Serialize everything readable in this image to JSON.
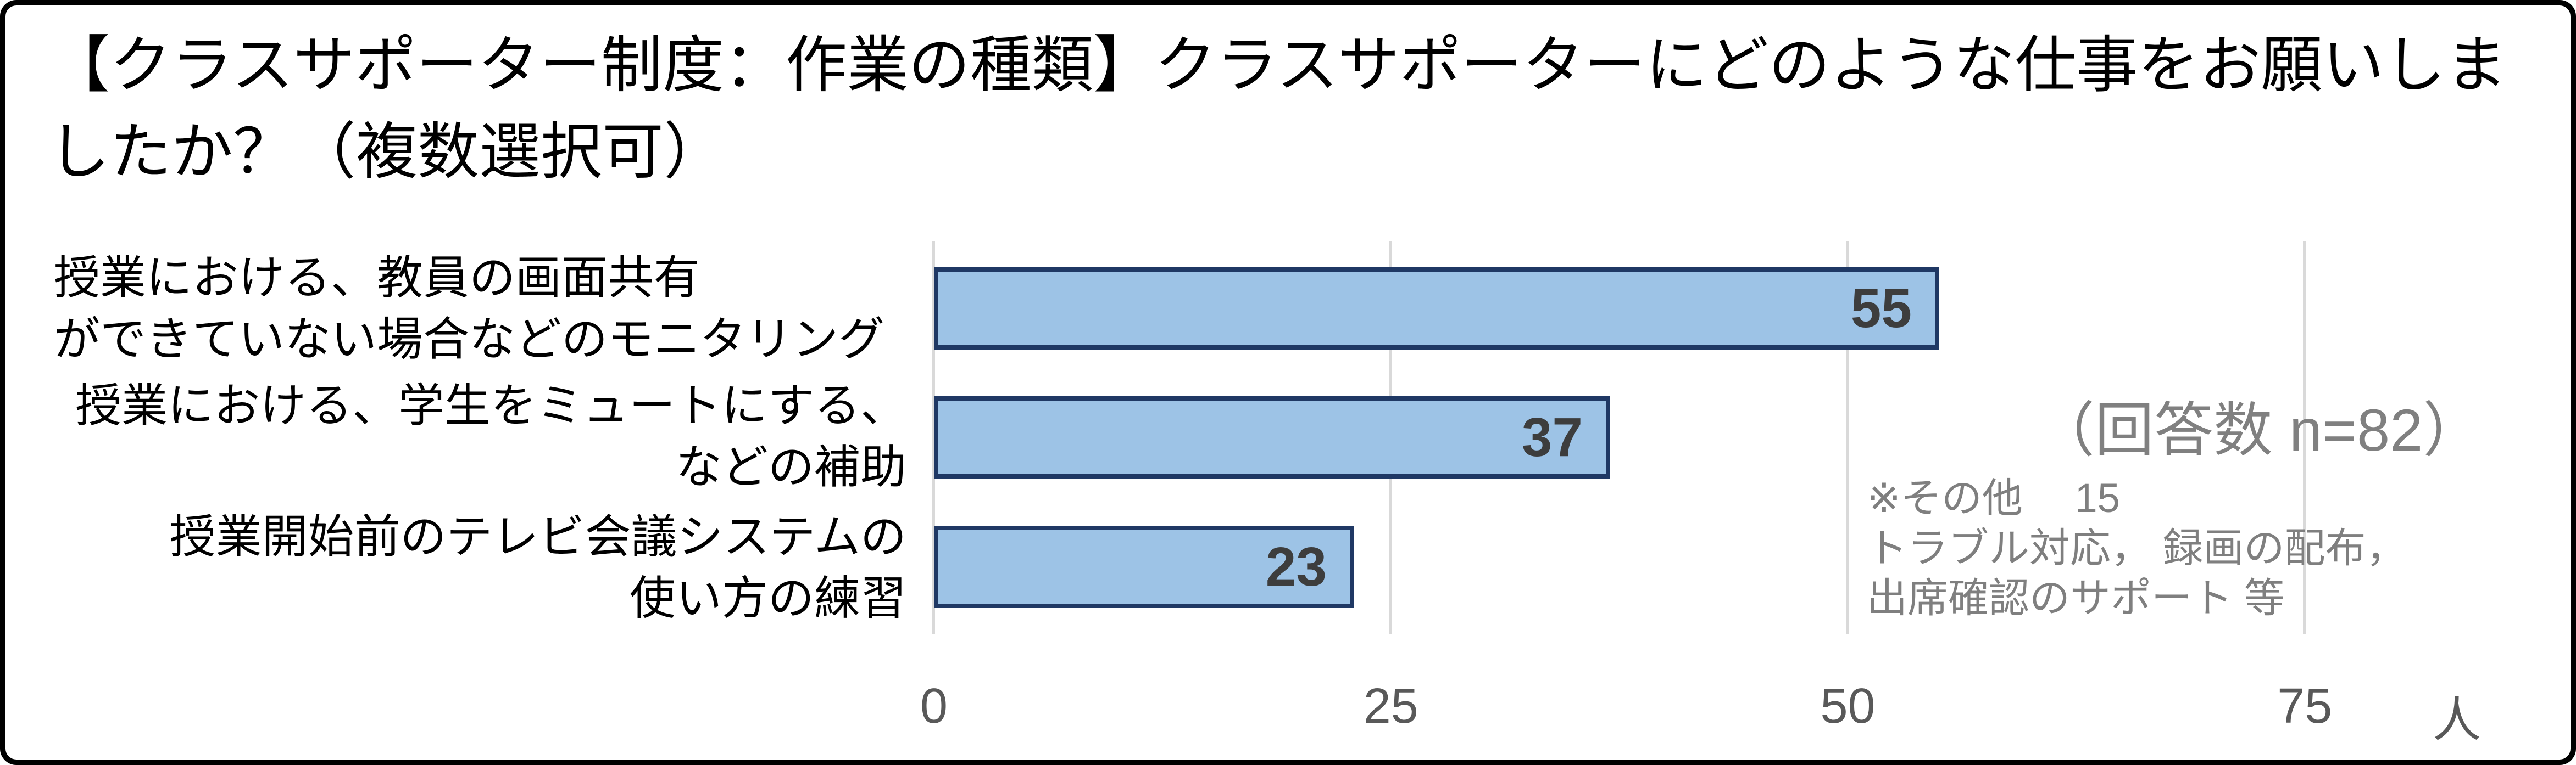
{
  "title": "【クラスサポーター制度：作業の種類】クラスサポーターにどのような仕事をお願いしましたか？（複数選択可）",
  "chart_data": {
    "type": "bar",
    "orientation": "horizontal",
    "title": "【クラスサポーター制度：作業の種類】クラスサポーターにどのような仕事をお願いしましたか？（複数選択可）",
    "categories": [
      "授業における、教員の画面共有\nができていない場合などのモニタリング",
      "授業における、学生をミュートにする、\nなどの補助",
      "授業開始前のテレビ会議システムの\n使い方の練習"
    ],
    "values": [
      55,
      37,
      23
    ],
    "x_ticks": [
      "0",
      "25",
      "50",
      "75"
    ],
    "x_unit": "人",
    "xlim": [
      0,
      82
    ],
    "grid": "vertical-only",
    "legend": "none",
    "bar_fill": "#9DC3E6",
    "bar_border": "#1F3864",
    "value_label_color": "#3D3D3D",
    "gridline_color": "#D9D9D9",
    "tick_label_color": "#595959"
  },
  "annotations": {
    "respondents": "（回答数 n=82）",
    "other_note": "※その他　 15\nトラブル対応， 録画の配布，\n出席確認のサポート 等"
  }
}
